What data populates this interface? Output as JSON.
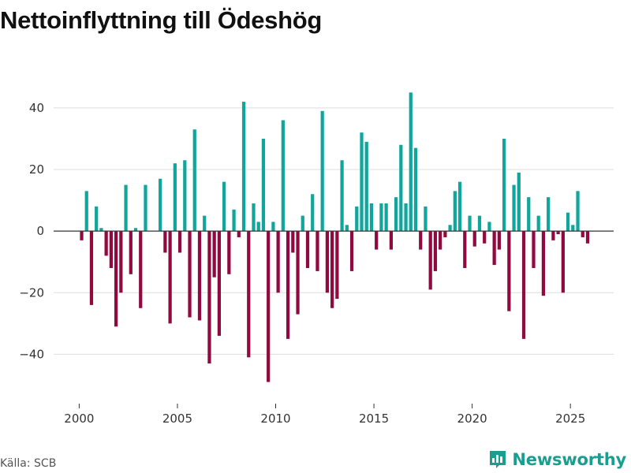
{
  "title": "Nettoinflyttning till Ödeshög",
  "source": "Källa: SCB",
  "brand": {
    "name": "Newsworthy",
    "icon": "newsworthy-logo-icon"
  },
  "colors": {
    "positive": "#11a69c",
    "negative": "#910a3f",
    "grid": "#dddddd",
    "zero": "#333333"
  },
  "chart_data": {
    "type": "bar",
    "title": "Nettoinflyttning till Ödeshög",
    "xlabel": "",
    "ylabel": "",
    "xlim": [
      1998.7,
      2027.2
    ],
    "ylim": [
      -55,
      52
    ],
    "yticks": [
      -40,
      -20,
      0,
      20,
      40
    ],
    "ytick_labels": [
      "−40",
      "−20",
      "0",
      "20",
      "40"
    ],
    "xticks": [
      2000,
      2005,
      2010,
      2015,
      2020,
      2025
    ],
    "xtick_labels": [
      "2000",
      "2005",
      "2010",
      "2015",
      "2020",
      "2025"
    ],
    "grid": true,
    "period": "quarterly",
    "start_year": 2000,
    "values": [
      -3,
      13,
      -24,
      8,
      1,
      -8,
      -12,
      -31,
      -20,
      15,
      -14,
      1,
      -25,
      15,
      0,
      0,
      17,
      -7,
      -30,
      22,
      -7,
      23,
      -28,
      33,
      -29,
      5,
      -43,
      -15,
      -34,
      16,
      -14,
      7,
      -2,
      42,
      -41,
      9,
      3,
      30,
      -49,
      3,
      -20,
      36,
      -35,
      -7,
      -27,
      5,
      -12,
      12,
      -13,
      39,
      -20,
      -25,
      -22,
      23,
      2,
      -13,
      8,
      32,
      29,
      9,
      -6,
      9,
      9,
      -6,
      11,
      28,
      9,
      45,
      27,
      -6,
      8,
      -19,
      -13,
      -6,
      -2,
      2,
      13,
      16,
      -12,
      5,
      -5,
      5,
      -4,
      3,
      -11,
      -6,
      30,
      -26,
      15,
      19,
      -35,
      11,
      -12,
      5,
      -21,
      11,
      -3,
      -1,
      -20,
      6,
      2,
      13,
      -2,
      -4
    ]
  }
}
